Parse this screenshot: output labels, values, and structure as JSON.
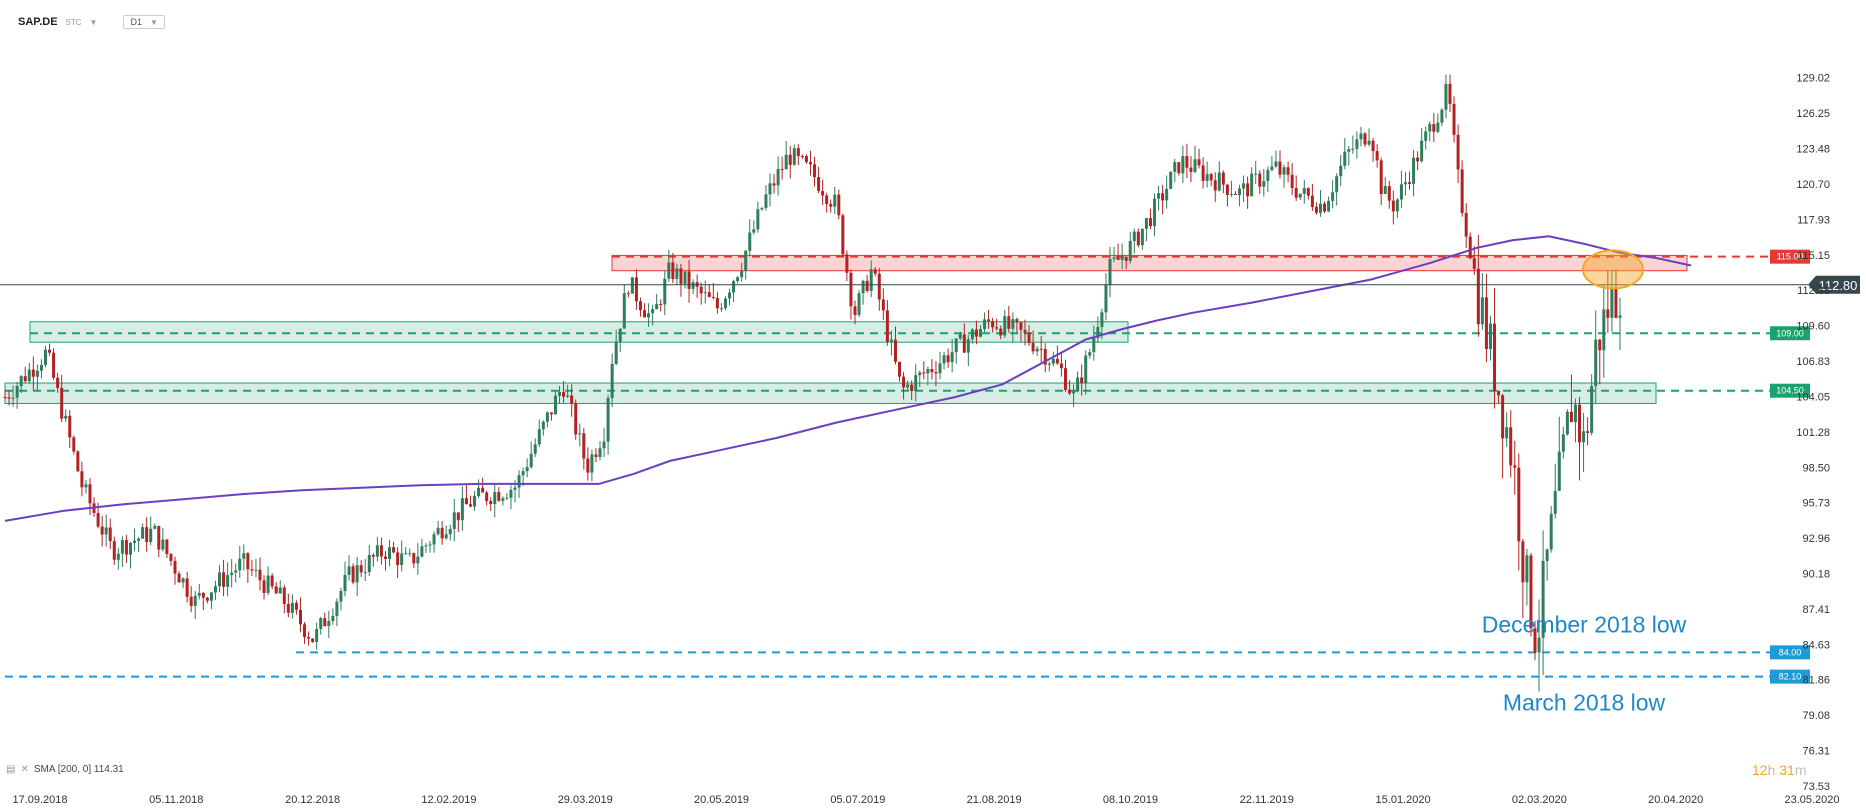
{
  "header": {
    "symbol": "SAP.DE",
    "subtitle": "STC",
    "timeframe": "D1"
  },
  "legend": {
    "text": "SMA [200, 0] 114.31"
  },
  "timer": {
    "hours": "12",
    "h": "h",
    "minutes": "31",
    "m": "m"
  },
  "colors": {
    "up": "#2e7d5b",
    "down": "#b22222",
    "sma": "#6a3fc1",
    "resistance": "#e53935",
    "support": "#1aa36f",
    "low": "#1e9bd7",
    "highlight": "#f5a623"
  },
  "chart_data": {
    "type": "candlestick",
    "title": "",
    "ylim": [
      73.53,
      130.8
    ],
    "y_ticks": [
      "129.02",
      "126.25",
      "123.48",
      "120.70",
      "117.93",
      "115.15",
      "112.38",
      "109.60",
      "106.83",
      "104.05",
      "101.28",
      "98.50",
      "95.73",
      "92.96",
      "90.18",
      "87.41",
      "84.63",
      "81.86",
      "79.08",
      "76.31",
      "73.53"
    ],
    "y_tick_values": [
      129.02,
      126.25,
      123.48,
      120.7,
      117.93,
      115.15,
      112.38,
      109.6,
      106.83,
      104.05,
      101.28,
      98.5,
      95.73,
      92.96,
      90.18,
      87.41,
      84.63,
      81.86,
      79.08,
      76.31,
      73.53
    ],
    "x_ticks": [
      "17.09.2018",
      "05.11.2018",
      "20.12.2018",
      "12.02.2019",
      "29.03.2019",
      "20.05.2019",
      "05.07.2019",
      "21.08.2019",
      "08.10.2019",
      "22.11.2019",
      "15.01.2020",
      "02.03.2020",
      "20.04.2020",
      "23.05.2020"
    ],
    "current_price": {
      "value": 112.8,
      "label": "112.80"
    },
    "levels": [
      {
        "name": "resistance",
        "value": 115.0,
        "label": "115.00",
        "zone": [
          113.9,
          115.1
        ]
      },
      {
        "name": "support-upper",
        "value": 109.0,
        "label": "109.00",
        "zone": [
          108.3,
          109.9
        ]
      },
      {
        "name": "support-lower",
        "value": 104.5,
        "label": "104.50",
        "zone": [
          103.5,
          105.1
        ]
      },
      {
        "name": "december-2018-low",
        "value": 84.0,
        "label": "84.00"
      },
      {
        "name": "march-2018-low",
        "value": 82.1,
        "label": "82.10"
      }
    ],
    "annotations": [
      "December 2018 low",
      "March 2018 low"
    ],
    "series": [
      {
        "type": "sma",
        "path": [
          [
            0,
            94.3
          ],
          [
            0.05,
            95.1
          ],
          [
            0.1,
            95.6
          ],
          [
            0.15,
            96.0
          ],
          [
            0.2,
            96.4
          ],
          [
            0.25,
            96.7
          ],
          [
            0.3,
            96.9
          ],
          [
            0.35,
            97.1
          ],
          [
            0.4,
            97.2
          ],
          [
            0.45,
            97.2
          ],
          [
            0.5,
            97.2
          ],
          [
            0.53,
            98.0
          ],
          [
            0.56,
            99.0
          ],
          [
            0.6,
            99.8
          ],
          [
            0.65,
            100.8
          ],
          [
            0.7,
            102.0
          ],
          [
            0.75,
            103.0
          ],
          [
            0.8,
            104.0
          ],
          [
            0.84,
            105.0
          ],
          [
            0.88,
            107.0
          ],
          [
            0.91,
            108.5
          ],
          [
            0.94,
            109.3
          ],
          [
            0.97,
            110.0
          ],
          [
            1.0,
            110.6
          ],
          [
            1.05,
            111.4
          ],
          [
            1.1,
            112.3
          ],
          [
            1.15,
            113.2
          ],
          [
            1.2,
            114.5
          ],
          [
            1.24,
            115.7
          ],
          [
            1.27,
            116.3
          ],
          [
            1.3,
            116.6
          ],
          [
            1.33,
            116.0
          ],
          [
            1.36,
            115.3
          ],
          [
            1.39,
            114.9
          ],
          [
            1.42,
            114.31
          ]
        ]
      },
      {
        "type": "ohlc",
        "anchors": [
          [
            0,
            104
          ],
          [
            0.035,
            107.5
          ],
          [
            0.065,
            97
          ],
          [
            0.09,
            92
          ],
          [
            0.125,
            93.5
          ],
          [
            0.16,
            88
          ],
          [
            0.2,
            91
          ],
          [
            0.235,
            88
          ],
          [
            0.26,
            85
          ],
          [
            0.29,
            90
          ],
          [
            0.32,
            92
          ],
          [
            0.34,
            91
          ],
          [
            0.37,
            94
          ],
          [
            0.395,
            96
          ],
          [
            0.43,
            97
          ],
          [
            0.45,
            101
          ],
          [
            0.47,
            105
          ],
          [
            0.49,
            98.5
          ],
          [
            0.505,
            101.5
          ],
          [
            0.51,
            106.5
          ],
          [
            0.525,
            113
          ],
          [
            0.545,
            110
          ],
          [
            0.56,
            114
          ],
          [
            0.6,
            111
          ],
          [
            0.62,
            114.5
          ],
          [
            0.64,
            119.5
          ],
          [
            0.66,
            123
          ],
          [
            0.68,
            121.5
          ],
          [
            0.7,
            119
          ],
          [
            0.715,
            110.5
          ],
          [
            0.73,
            114
          ],
          [
            0.755,
            104.5
          ],
          [
            0.79,
            107
          ],
          [
            0.83,
            110
          ],
          [
            0.855,
            109
          ],
          [
            0.87,
            108
          ],
          [
            0.89,
            106
          ],
          [
            0.9,
            104
          ],
          [
            0.915,
            108
          ],
          [
            0.93,
            114
          ],
          [
            0.95,
            116
          ],
          [
            0.97,
            119
          ],
          [
            0.99,
            122.5
          ],
          [
            1.02,
            121
          ],
          [
            1.04,
            120
          ],
          [
            1.07,
            122
          ],
          [
            1.09,
            120
          ],
          [
            1.11,
            119
          ],
          [
            1.13,
            123
          ],
          [
            1.15,
            125
          ],
          [
            1.16,
            120
          ],
          [
            1.17,
            119
          ],
          [
            1.19,
            123
          ],
          [
            1.205,
            126
          ],
          [
            1.215,
            128
          ],
          [
            1.225,
            120
          ],
          [
            1.235,
            115
          ],
          [
            1.245,
            110
          ],
          [
            1.255,
            106
          ],
          [
            1.27,
            99
          ],
          [
            1.28,
            90
          ],
          [
            1.29,
            85
          ],
          [
            1.3,
            92
          ],
          [
            1.31,
            98
          ],
          [
            1.32,
            104
          ],
          [
            1.33,
            100
          ],
          [
            1.34,
            108
          ],
          [
            1.35,
            111
          ],
          [
            1.36,
            112.8
          ]
        ]
      }
    ]
  }
}
